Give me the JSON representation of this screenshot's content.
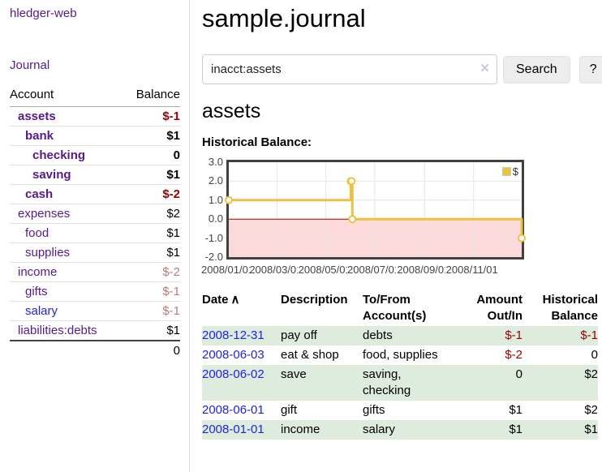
{
  "app": {
    "title": "hledger-web"
  },
  "sidebar": {
    "journal_link": "Journal",
    "accounts_table": {
      "header": {
        "account": "Account",
        "balance": "Balance"
      },
      "rows": [
        {
          "account": "assets",
          "balance": "$-1"
        },
        {
          "account": "bank",
          "balance": "$1"
        },
        {
          "account": "checking",
          "balance": "0"
        },
        {
          "account": "saving",
          "balance": "$1"
        },
        {
          "account": "cash",
          "balance": "$-2"
        },
        {
          "account": "expenses",
          "balance": "$2"
        },
        {
          "account": "food",
          "balance": "$1"
        },
        {
          "account": "supplies",
          "balance": "$1"
        },
        {
          "account": "income",
          "balance": "$-2"
        },
        {
          "account": "gifts",
          "balance": "$-1"
        },
        {
          "account": "salary",
          "balance": "$-1"
        },
        {
          "account": "liabilities:debts",
          "balance": "$1"
        }
      ],
      "total": "0"
    }
  },
  "header": {
    "title": "sample.journal"
  },
  "search": {
    "query": "inacct:assets",
    "clear_icon": "✕",
    "button_label": "Search",
    "help_label": "?"
  },
  "register": {
    "account_heading": "assets",
    "chart_title": "Historical Balance:",
    "table": {
      "headers": {
        "date": "Date",
        "sort_icon": "∧",
        "description": "Description",
        "accounts": "To/From Account(s)",
        "amount": "Amount Out/In",
        "balance": "Historical Balance"
      },
      "rows": [
        {
          "date": "2008-12-31",
          "description": "pay off",
          "accounts": "debts",
          "amount": "$-1",
          "balance": "$-1"
        },
        {
          "date": "2008-06-03",
          "description": "eat & shop",
          "accounts": "food, supplies",
          "amount": "$-2",
          "balance": "0"
        },
        {
          "date": "2008-06-02",
          "description": "save",
          "accounts": "saving, checking",
          "amount": "0",
          "balance": "$2"
        },
        {
          "date": "2008-06-01",
          "description": "gift",
          "accounts": "gifts",
          "amount": "$1",
          "balance": "$2"
        },
        {
          "date": "2008-01-01",
          "description": "income",
          "accounts": "salary",
          "amount": "$1",
          "balance": "$1"
        }
      ]
    }
  },
  "chart_data": {
    "type": "line",
    "step": true,
    "title": "Historical Balance:",
    "x": [
      "2008-01-01",
      "2008-06-01",
      "2008-06-02",
      "2008-06-03",
      "2008-12-31"
    ],
    "series": [
      {
        "name": "$",
        "color": "#edc240",
        "values": [
          1,
          2,
          2,
          0,
          -1
        ]
      }
    ],
    "xlim": [
      "2008-01-01",
      "2008-12-31"
    ],
    "ylim": [
      -2,
      3
    ],
    "yticks": [
      "3.0",
      "2.0",
      "1.0",
      "0.0",
      "-1.0",
      "-2.0"
    ],
    "xticks": [
      "2008/01/01",
      "2008/03/01",
      "2008/05/01",
      "2008/07/01",
      "2008/09/01",
      "2008/11/01"
    ],
    "xtick_dates": [
      "2008-01-01",
      "2008-03-01",
      "2008-05-01",
      "2008-07-01",
      "2008-09-01",
      "2008-11-01"
    ],
    "legend": {
      "label": "$",
      "position": "top-right"
    },
    "grid": true,
    "colors": {
      "line": "#edc240",
      "marker_fill": "#ffffff",
      "negative_region": "#fcdada",
      "zero_line": "#a00000",
      "gridline": "#e6e6e6",
      "plot_border": "#414141"
    }
  },
  "colors": {
    "link_purple": "#551a8b",
    "link_blue": "#2222dd",
    "negative_strong": "#990000",
    "negative_muted": "#b97c7c",
    "row_highlight_green": "#ddecdd",
    "button_bg": "#ededed"
  }
}
